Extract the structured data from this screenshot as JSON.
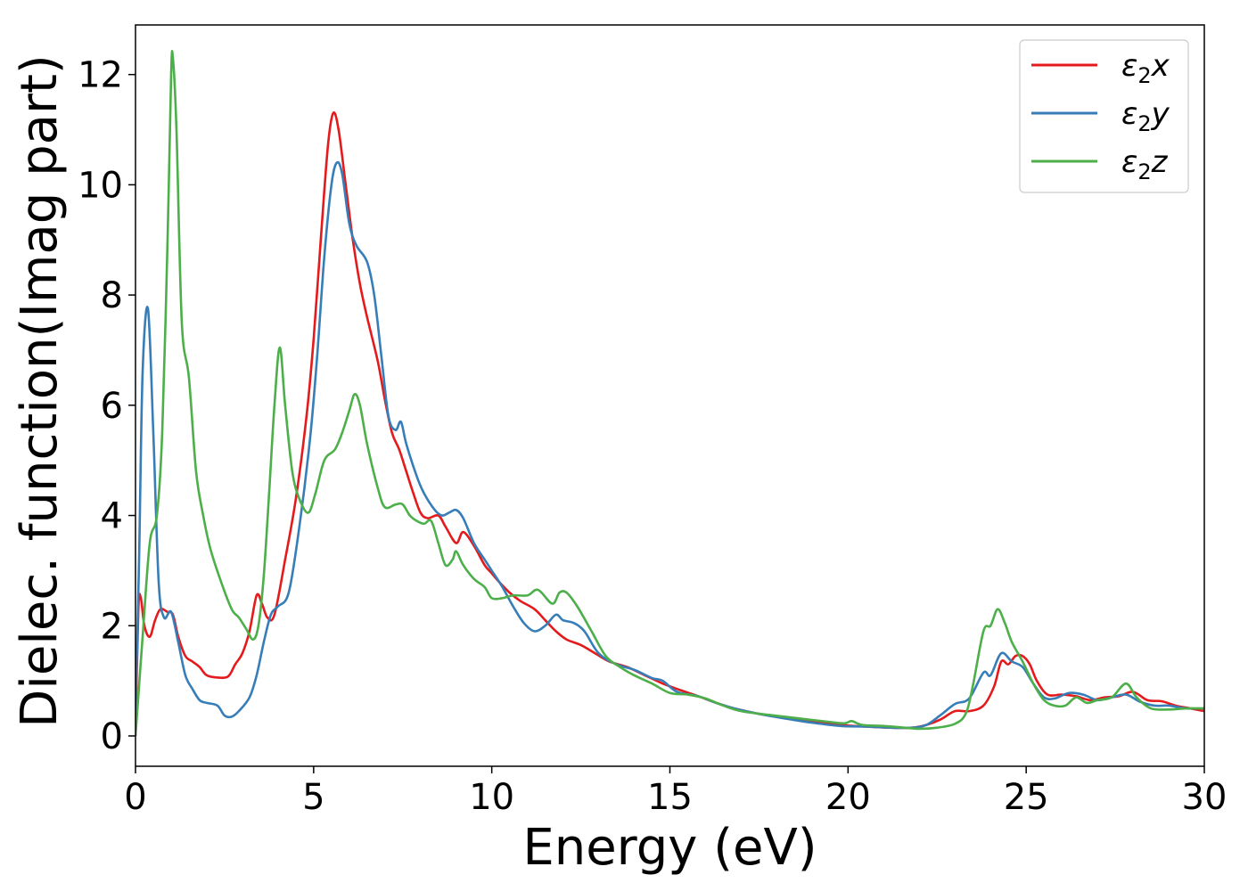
{
  "chart_data": {
    "type": "line",
    "title": "",
    "xlabel": "Energy (eV)",
    "ylabel": "Dielec. function(Imag part)",
    "xlim": [
      0,
      30
    ],
    "ylim": [
      -0.55,
      12.9
    ],
    "xticks": [
      0,
      5,
      10,
      15,
      20,
      25,
      30
    ],
    "yticks": [
      0,
      2,
      4,
      6,
      8,
      10,
      12
    ],
    "grid": false,
    "legend_position": "top-right",
    "series": [
      {
        "name": "ε₂x",
        "legend_base": "ε",
        "legend_sub": "2",
        "legend_suffix": "x",
        "color": "#e41a1c",
        "points": [
          [
            0,
            0
          ],
          [
            0.08,
            2.3
          ],
          [
            0.15,
            2.5
          ],
          [
            0.25,
            2.0
          ],
          [
            0.4,
            1.8
          ],
          [
            0.55,
            2.1
          ],
          [
            0.7,
            2.3
          ],
          [
            0.9,
            2.25
          ],
          [
            1.05,
            2.2
          ],
          [
            1.2,
            1.8
          ],
          [
            1.4,
            1.45
          ],
          [
            1.6,
            1.35
          ],
          [
            1.8,
            1.25
          ],
          [
            2.0,
            1.1
          ],
          [
            2.3,
            1.06
          ],
          [
            2.6,
            1.08
          ],
          [
            2.8,
            1.3
          ],
          [
            3.0,
            1.5
          ],
          [
            3.2,
            1.9
          ],
          [
            3.4,
            2.55
          ],
          [
            3.55,
            2.4
          ],
          [
            3.7,
            2.15
          ],
          [
            3.9,
            2.2
          ],
          [
            4.2,
            3.2
          ],
          [
            4.5,
            4.3
          ],
          [
            4.8,
            5.8
          ],
          [
            5.0,
            7.2
          ],
          [
            5.2,
            9.0
          ],
          [
            5.4,
            10.7
          ],
          [
            5.55,
            11.3
          ],
          [
            5.7,
            11.0
          ],
          [
            5.9,
            10.0
          ],
          [
            6.1,
            9.0
          ],
          [
            6.3,
            8.2
          ],
          [
            6.5,
            7.6
          ],
          [
            6.8,
            6.8
          ],
          [
            7.0,
            6.1
          ],
          [
            7.2,
            5.5
          ],
          [
            7.4,
            5.2
          ],
          [
            7.6,
            4.8
          ],
          [
            7.8,
            4.4
          ],
          [
            8.0,
            4.05
          ],
          [
            8.2,
            3.95
          ],
          [
            8.5,
            4.0
          ],
          [
            8.7,
            3.8
          ],
          [
            9.0,
            3.5
          ],
          [
            9.2,
            3.7
          ],
          [
            9.5,
            3.45
          ],
          [
            9.8,
            3.1
          ],
          [
            10.0,
            2.95
          ],
          [
            10.2,
            2.8
          ],
          [
            10.5,
            2.6
          ],
          [
            10.8,
            2.45
          ],
          [
            11.2,
            2.3
          ],
          [
            11.5,
            2.1
          ],
          [
            11.8,
            1.9
          ],
          [
            12.1,
            1.75
          ],
          [
            12.5,
            1.65
          ],
          [
            12.9,
            1.5
          ],
          [
            13.3,
            1.35
          ],
          [
            13.8,
            1.25
          ],
          [
            14.3,
            1.1
          ],
          [
            14.8,
            0.95
          ],
          [
            15.3,
            0.83
          ],
          [
            15.8,
            0.72
          ],
          [
            16.3,
            0.6
          ],
          [
            16.8,
            0.5
          ],
          [
            17.5,
            0.4
          ],
          [
            18.2,
            0.33
          ],
          [
            19.0,
            0.26
          ],
          [
            19.8,
            0.2
          ],
          [
            20.5,
            0.17
          ],
          [
            21.2,
            0.15
          ],
          [
            21.8,
            0.15
          ],
          [
            22.2,
            0.2
          ],
          [
            22.6,
            0.3
          ],
          [
            23.0,
            0.45
          ],
          [
            23.4,
            0.45
          ],
          [
            23.8,
            0.55
          ],
          [
            24.1,
            0.9
          ],
          [
            24.3,
            1.35
          ],
          [
            24.5,
            1.3
          ],
          [
            24.7,
            1.45
          ],
          [
            24.9,
            1.45
          ],
          [
            25.1,
            1.3
          ],
          [
            25.3,
            1.0
          ],
          [
            25.6,
            0.75
          ],
          [
            26.0,
            0.75
          ],
          [
            26.4,
            0.72
          ],
          [
            26.8,
            0.65
          ],
          [
            27.2,
            0.7
          ],
          [
            27.6,
            0.72
          ],
          [
            28.0,
            0.8
          ],
          [
            28.4,
            0.65
          ],
          [
            28.8,
            0.63
          ],
          [
            29.2,
            0.55
          ],
          [
            29.6,
            0.5
          ],
          [
            30.0,
            0.45
          ]
        ]
      },
      {
        "name": "ε₂y",
        "legend_base": "ε",
        "legend_sub": "2",
        "legend_suffix": "y",
        "color": "#377eb8",
        "points": [
          [
            0,
            0.4
          ],
          [
            0.1,
            3.2
          ],
          [
            0.2,
            6.6
          ],
          [
            0.35,
            7.75
          ],
          [
            0.5,
            5.5
          ],
          [
            0.65,
            2.8
          ],
          [
            0.8,
            2.15
          ],
          [
            1.0,
            2.25
          ],
          [
            1.2,
            1.7
          ],
          [
            1.4,
            1.1
          ],
          [
            1.6,
            0.85
          ],
          [
            1.8,
            0.65
          ],
          [
            2.0,
            0.6
          ],
          [
            2.3,
            0.55
          ],
          [
            2.5,
            0.37
          ],
          [
            2.7,
            0.35
          ],
          [
            2.9,
            0.45
          ],
          [
            3.2,
            0.7
          ],
          [
            3.4,
            1.1
          ],
          [
            3.6,
            1.7
          ],
          [
            3.8,
            2.2
          ],
          [
            4.0,
            2.35
          ],
          [
            4.3,
            2.6
          ],
          [
            4.6,
            3.8
          ],
          [
            4.9,
            5.4
          ],
          [
            5.1,
            6.9
          ],
          [
            5.3,
            8.7
          ],
          [
            5.5,
            10.0
          ],
          [
            5.65,
            10.4
          ],
          [
            5.8,
            10.2
          ],
          [
            6.0,
            9.3
          ],
          [
            6.2,
            8.9
          ],
          [
            6.5,
            8.6
          ],
          [
            6.7,
            8.0
          ],
          [
            6.9,
            6.9
          ],
          [
            7.1,
            5.8
          ],
          [
            7.3,
            5.55
          ],
          [
            7.45,
            5.7
          ],
          [
            7.6,
            5.3
          ],
          [
            7.9,
            4.7
          ],
          [
            8.1,
            4.4
          ],
          [
            8.4,
            4.1
          ],
          [
            8.6,
            4.0
          ],
          [
            8.8,
            4.05
          ],
          [
            9.0,
            4.1
          ],
          [
            9.2,
            3.95
          ],
          [
            9.5,
            3.5
          ],
          [
            9.8,
            3.2
          ],
          [
            10.0,
            3.0
          ],
          [
            10.3,
            2.7
          ],
          [
            10.6,
            2.35
          ],
          [
            10.9,
            2.05
          ],
          [
            11.2,
            1.9
          ],
          [
            11.5,
            2.0
          ],
          [
            11.8,
            2.2
          ],
          [
            12.0,
            2.1
          ],
          [
            12.3,
            2.05
          ],
          [
            12.6,
            1.9
          ],
          [
            13.0,
            1.5
          ],
          [
            13.5,
            1.3
          ],
          [
            14.0,
            1.2
          ],
          [
            14.5,
            1.05
          ],
          [
            14.8,
            1.0
          ],
          [
            15.2,
            0.8
          ],
          [
            15.8,
            0.72
          ],
          [
            16.3,
            0.6
          ],
          [
            16.8,
            0.5
          ],
          [
            17.5,
            0.4
          ],
          [
            18.2,
            0.32
          ],
          [
            19.0,
            0.24
          ],
          [
            19.8,
            0.18
          ],
          [
            20.5,
            0.17
          ],
          [
            21.2,
            0.15
          ],
          [
            21.8,
            0.15
          ],
          [
            22.2,
            0.2
          ],
          [
            22.6,
            0.38
          ],
          [
            23.0,
            0.58
          ],
          [
            23.4,
            0.68
          ],
          [
            23.8,
            1.15
          ],
          [
            24.0,
            1.1
          ],
          [
            24.3,
            1.5
          ],
          [
            24.6,
            1.35
          ],
          [
            24.9,
            1.25
          ],
          [
            25.2,
            0.95
          ],
          [
            25.5,
            0.7
          ],
          [
            25.8,
            0.68
          ],
          [
            26.2,
            0.78
          ],
          [
            26.6,
            0.75
          ],
          [
            27.0,
            0.65
          ],
          [
            27.4,
            0.7
          ],
          [
            27.8,
            0.75
          ],
          [
            28.2,
            0.62
          ],
          [
            28.6,
            0.55
          ],
          [
            29.0,
            0.55
          ],
          [
            29.5,
            0.5
          ],
          [
            30.0,
            0.5
          ]
        ]
      },
      {
        "name": "ε₂z",
        "legend_base": "ε",
        "legend_sub": "2",
        "legend_suffix": "z",
        "color": "#4daf4a",
        "points": [
          [
            0,
            0
          ],
          [
            0.2,
            1.8
          ],
          [
            0.4,
            3.5
          ],
          [
            0.6,
            4.0
          ],
          [
            0.75,
            5.5
          ],
          [
            0.9,
            9.0
          ],
          [
            1.0,
            12.0
          ],
          [
            1.05,
            12.3
          ],
          [
            1.15,
            11.0
          ],
          [
            1.3,
            7.5
          ],
          [
            1.5,
            6.5
          ],
          [
            1.7,
            4.8
          ],
          [
            1.9,
            4.0
          ],
          [
            2.1,
            3.4
          ],
          [
            2.4,
            2.8
          ],
          [
            2.7,
            2.3
          ],
          [
            2.9,
            2.15
          ],
          [
            3.1,
            1.95
          ],
          [
            3.3,
            1.75
          ],
          [
            3.45,
            2.0
          ],
          [
            3.6,
            2.9
          ],
          [
            3.75,
            4.4
          ],
          [
            3.9,
            6.0
          ],
          [
            4.05,
            7.05
          ],
          [
            4.2,
            6.0
          ],
          [
            4.4,
            4.8
          ],
          [
            4.6,
            4.3
          ],
          [
            4.85,
            4.05
          ],
          [
            5.05,
            4.4
          ],
          [
            5.3,
            5.0
          ],
          [
            5.6,
            5.2
          ],
          [
            5.8,
            5.5
          ],
          [
            6.0,
            5.9
          ],
          [
            6.15,
            6.2
          ],
          [
            6.3,
            6.0
          ],
          [
            6.5,
            5.3
          ],
          [
            6.8,
            4.5
          ],
          [
            7.0,
            4.15
          ],
          [
            7.3,
            4.2
          ],
          [
            7.5,
            4.2
          ],
          [
            7.7,
            4.0
          ],
          [
            7.9,
            3.9
          ],
          [
            8.1,
            3.85
          ],
          [
            8.3,
            3.9
          ],
          [
            8.5,
            3.5
          ],
          [
            8.7,
            3.1
          ],
          [
            8.9,
            3.2
          ],
          [
            9.0,
            3.35
          ],
          [
            9.2,
            3.1
          ],
          [
            9.5,
            2.85
          ],
          [
            9.8,
            2.7
          ],
          [
            10.0,
            2.5
          ],
          [
            10.3,
            2.5
          ],
          [
            10.6,
            2.55
          ],
          [
            11.0,
            2.55
          ],
          [
            11.3,
            2.65
          ],
          [
            11.7,
            2.4
          ],
          [
            11.9,
            2.6
          ],
          [
            12.1,
            2.6
          ],
          [
            12.4,
            2.35
          ],
          [
            12.8,
            1.9
          ],
          [
            13.2,
            1.45
          ],
          [
            13.6,
            1.25
          ],
          [
            14.0,
            1.1
          ],
          [
            14.5,
            0.95
          ],
          [
            15.0,
            0.78
          ],
          [
            15.5,
            0.75
          ],
          [
            16.0,
            0.68
          ],
          [
            16.5,
            0.55
          ],
          [
            17.0,
            0.45
          ],
          [
            17.8,
            0.38
          ],
          [
            18.6,
            0.32
          ],
          [
            19.4,
            0.26
          ],
          [
            19.9,
            0.23
          ],
          [
            20.1,
            0.27
          ],
          [
            20.4,
            0.2
          ],
          [
            21.0,
            0.18
          ],
          [
            21.6,
            0.15
          ],
          [
            22.0,
            0.13
          ],
          [
            22.5,
            0.15
          ],
          [
            23.0,
            0.22
          ],
          [
            23.3,
            0.4
          ],
          [
            23.5,
            0.9
          ],
          [
            23.8,
            1.9
          ],
          [
            24.0,
            2.0
          ],
          [
            24.2,
            2.3
          ],
          [
            24.4,
            2.05
          ],
          [
            24.6,
            1.7
          ],
          [
            24.9,
            1.35
          ],
          [
            25.2,
            0.95
          ],
          [
            25.5,
            0.65
          ],
          [
            25.8,
            0.55
          ],
          [
            26.1,
            0.55
          ],
          [
            26.4,
            0.7
          ],
          [
            26.7,
            0.6
          ],
          [
            27.0,
            0.65
          ],
          [
            27.4,
            0.7
          ],
          [
            27.8,
            0.95
          ],
          [
            28.1,
            0.7
          ],
          [
            28.5,
            0.5
          ],
          [
            29.0,
            0.48
          ],
          [
            29.5,
            0.5
          ],
          [
            30.0,
            0.5
          ]
        ]
      }
    ]
  }
}
